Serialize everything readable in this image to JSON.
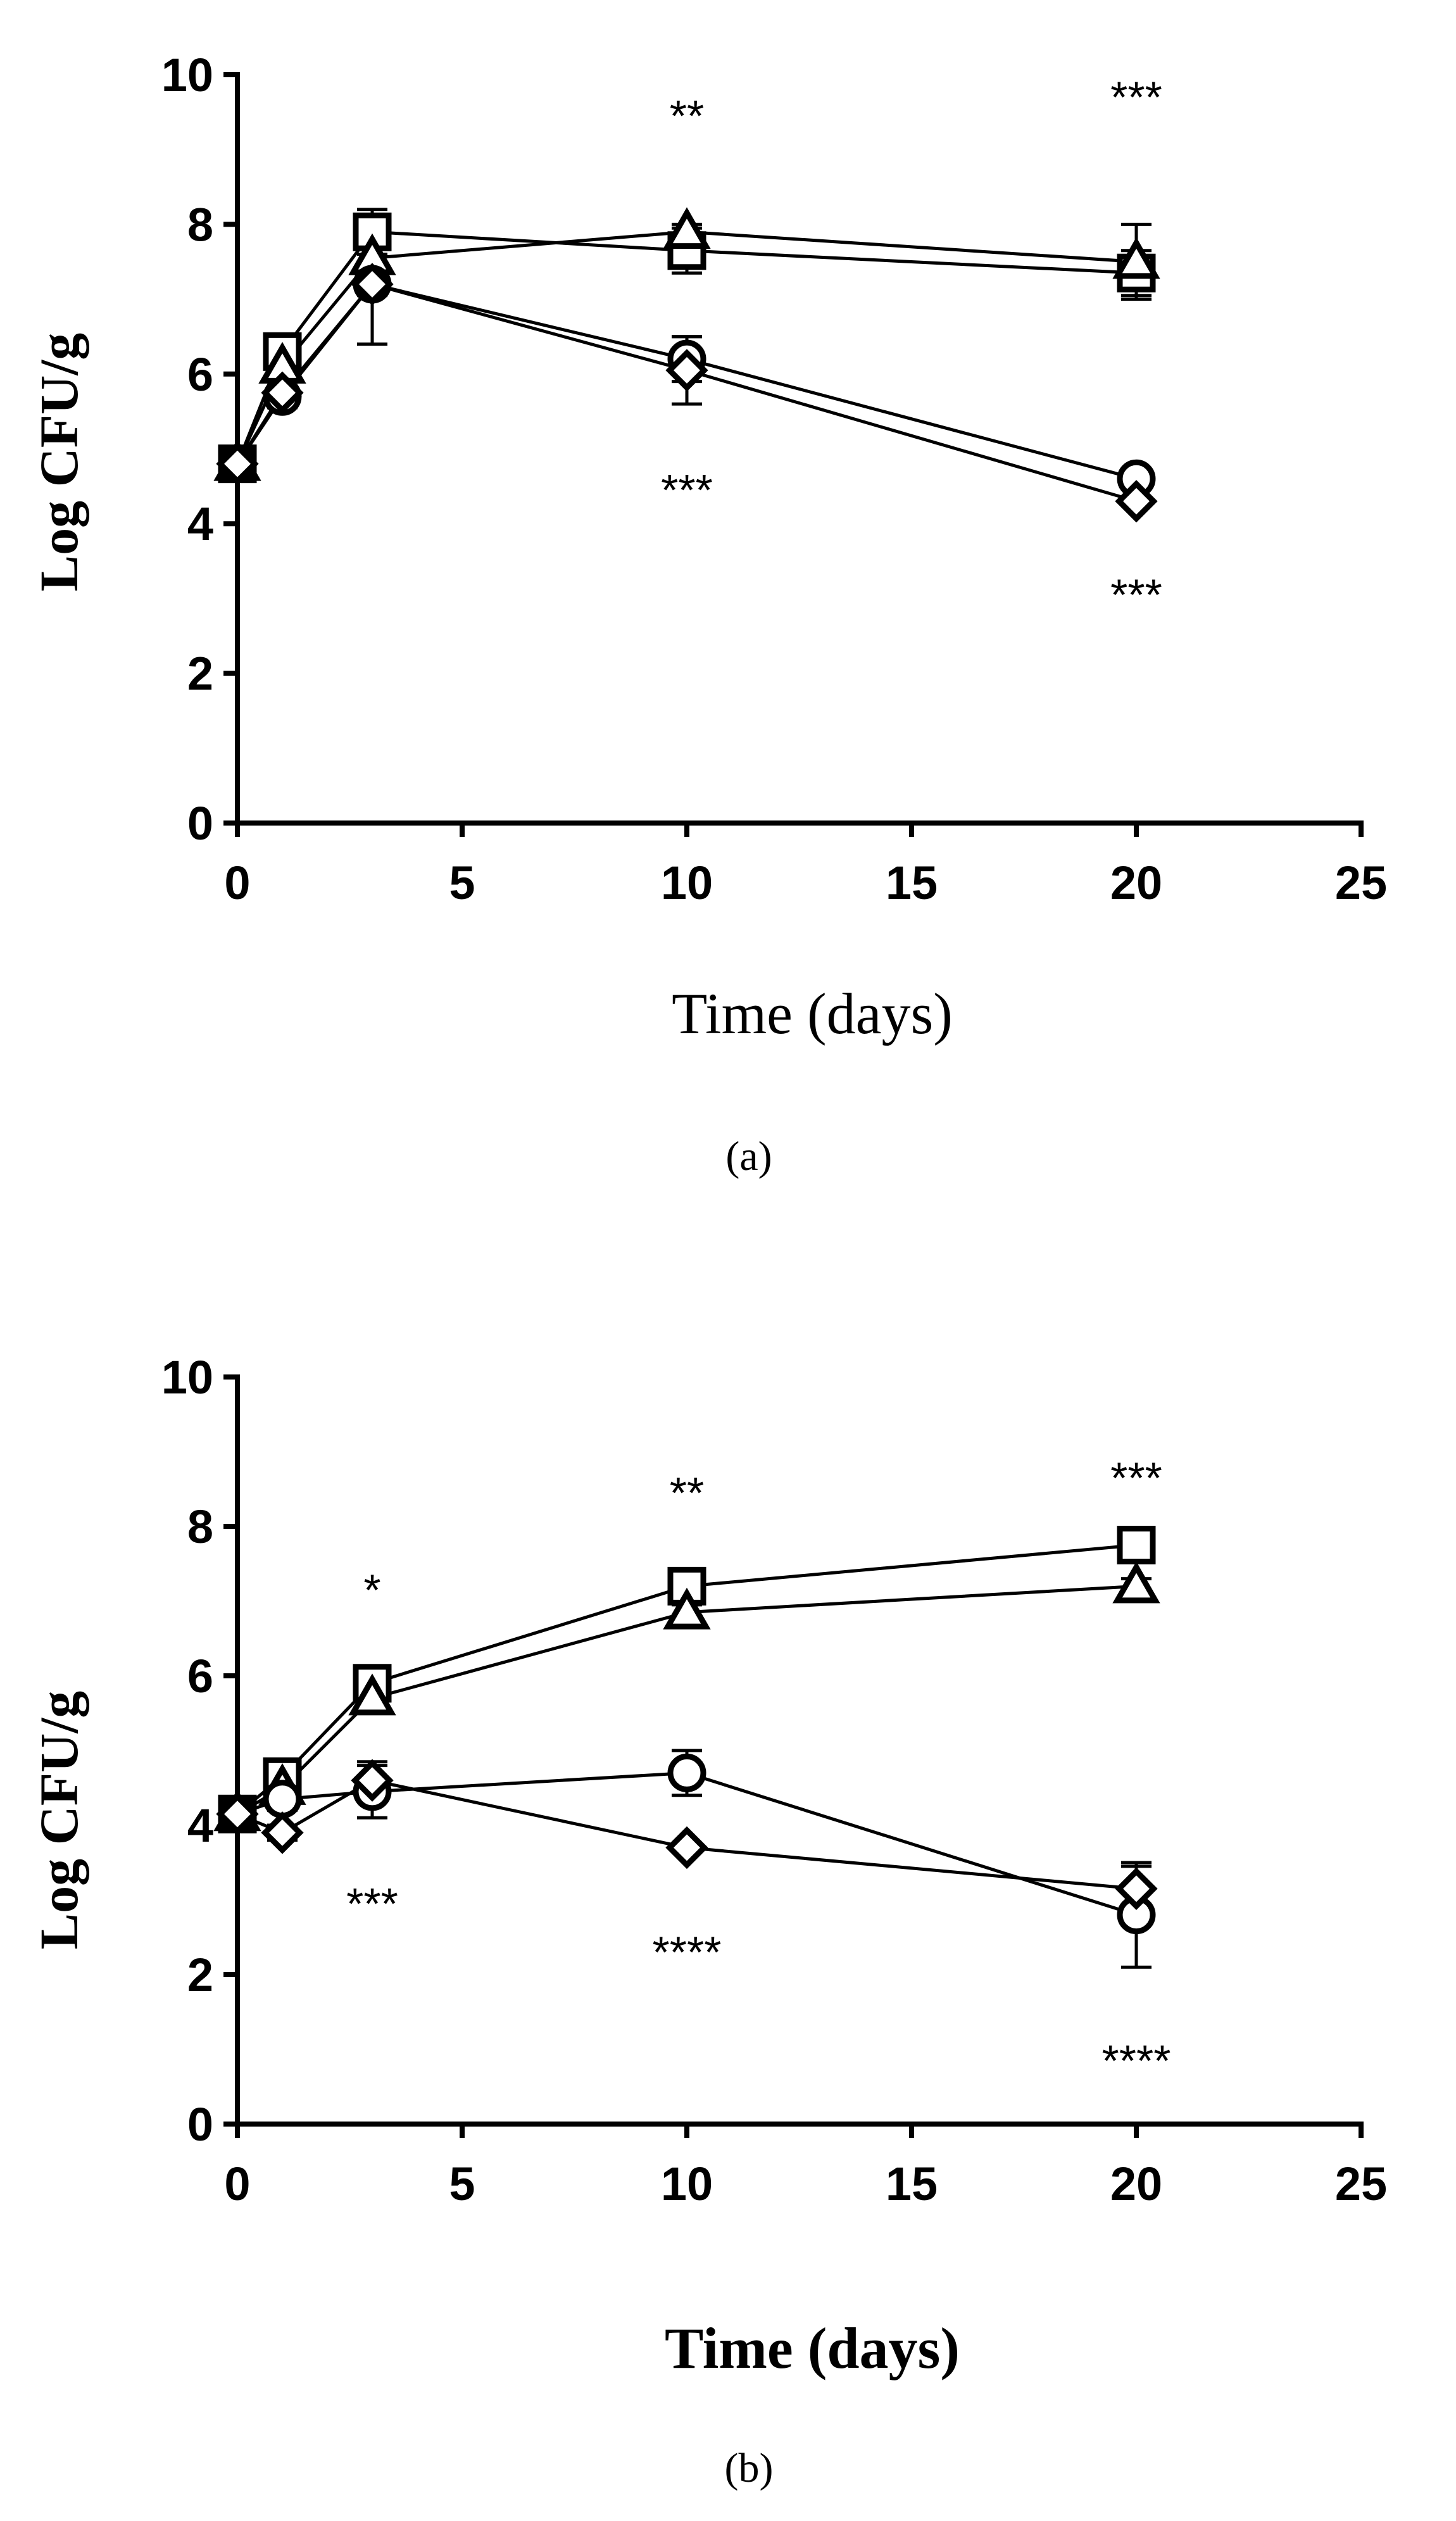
{
  "chart_data": [
    {
      "type": "line",
      "caption": "(a)",
      "xlabel": "Time (days)",
      "ylabel": "Log CFU/g",
      "xlim": [
        0,
        25
      ],
      "ylim": [
        0,
        10
      ],
      "x_ticks": [
        "0",
        "5",
        "10",
        "15",
        "20",
        "25"
      ],
      "y_ticks": [
        "0",
        "2",
        "4",
        "6",
        "8",
        "10"
      ],
      "x": [
        0,
        1,
        3,
        10,
        20
      ],
      "series": [
        {
          "name": "square",
          "marker": "square",
          "values": [
            4.8,
            6.3,
            7.9,
            7.65,
            7.35
          ],
          "errors": [
            0.05,
            0.2,
            0.3,
            0.3,
            0.3
          ]
        },
        {
          "name": "triangle",
          "marker": "triangle",
          "values": [
            4.8,
            6.1,
            7.55,
            7.9,
            7.5
          ],
          "errors": [
            0.05,
            0.2,
            0.15,
            0.1,
            0.5
          ]
        },
        {
          "name": "circle",
          "marker": "circle",
          "values": [
            4.8,
            5.7,
            7.2,
            6.2,
            4.6
          ],
          "errors": [
            0.05,
            0.15,
            0.15,
            0.3,
            0.05
          ]
        },
        {
          "name": "diamond",
          "marker": "diamond",
          "values": [
            4.8,
            5.75,
            7.2,
            6.05,
            4.3
          ],
          "errors": [
            0.05,
            0.15,
            0.8,
            0.45,
            0.05
          ]
        }
      ],
      "annotations": [
        {
          "text": "**",
          "x": 10,
          "y": 9.5
        },
        {
          "text": "***",
          "x": 20,
          "y": 9.75
        },
        {
          "text": "***",
          "x": 10,
          "y": 4.5
        },
        {
          "text": "***",
          "x": 20,
          "y": 3.1
        }
      ]
    },
    {
      "type": "line",
      "caption": "(b)",
      "xlabel": "Time (days)",
      "ylabel": "Log CFU/g",
      "xlim": [
        0,
        25
      ],
      "ylim": [
        0,
        10
      ],
      "x_ticks": [
        "0",
        "5",
        "10",
        "15",
        "20",
        "25"
      ],
      "y_ticks": [
        "0",
        "2",
        "4",
        "6",
        "8",
        "10"
      ],
      "x": [
        0,
        1,
        3,
        10,
        20
      ],
      "series": [
        {
          "name": "square",
          "marker": "square",
          "values": [
            4.15,
            4.65,
            5.9,
            7.2,
            7.75
          ],
          "errors": [
            0.05,
            0.1,
            0.1,
            0.1,
            0.1
          ]
        },
        {
          "name": "triangle",
          "marker": "triangle",
          "values": [
            4.15,
            4.5,
            5.7,
            6.85,
            7.2
          ],
          "errors": [
            0.05,
            0.1,
            0.1,
            0.1,
            0.1
          ]
        },
        {
          "name": "circle",
          "marker": "circle",
          "values": [
            4.15,
            4.35,
            4.45,
            4.7,
            2.8
          ],
          "errors": [
            0.05,
            0.15,
            0.35,
            0.3,
            0.7
          ]
        },
        {
          "name": "diamond",
          "marker": "diamond",
          "values": [
            4.15,
            3.9,
            4.6,
            3.7,
            3.15
          ],
          "errors": [
            0.05,
            0.1,
            0.25,
            0.05,
            0.3
          ]
        }
      ],
      "annotations": [
        {
          "text": "*",
          "x": 3,
          "y": 7.2
        },
        {
          "text": "**",
          "x": 10,
          "y": 8.5
        },
        {
          "text": "***",
          "x": 20,
          "y": 8.7
        },
        {
          "text": "***",
          "x": 3,
          "y": 3.0
        },
        {
          "text": "****",
          "x": 10,
          "y": 2.35
        },
        {
          "text": "****",
          "x": 20,
          "y": 0.9
        }
      ]
    }
  ]
}
